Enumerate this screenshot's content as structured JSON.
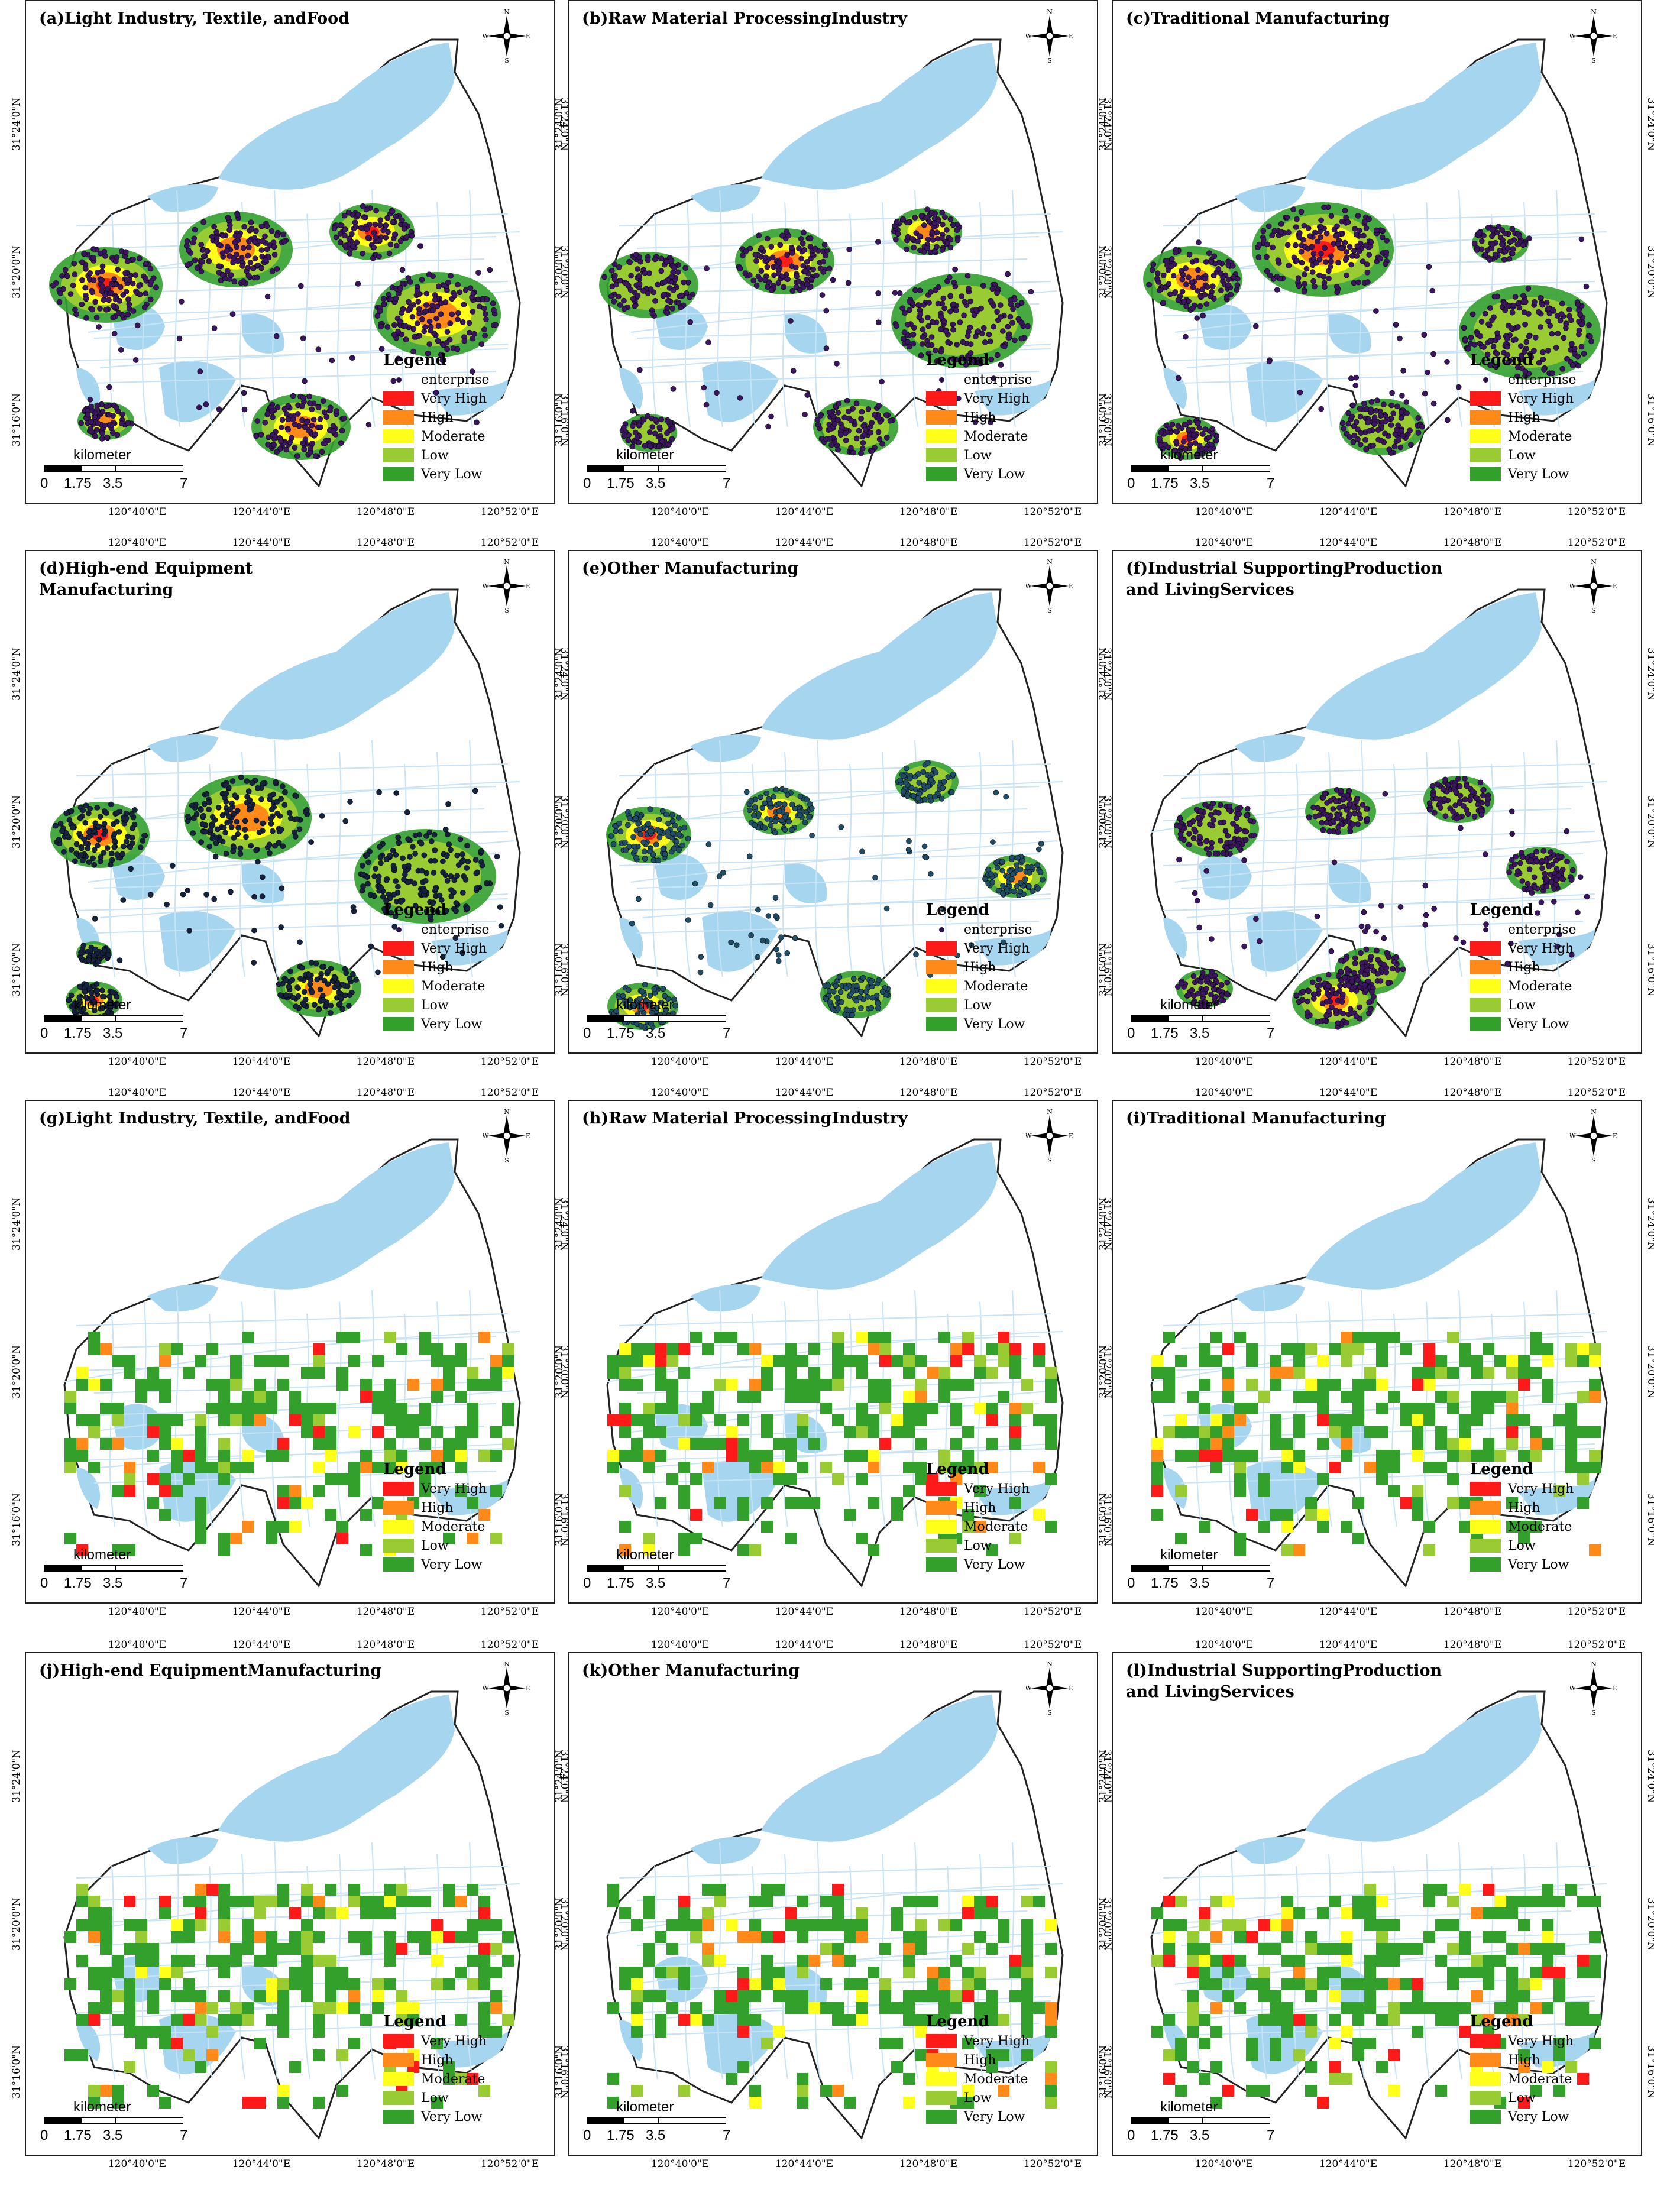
{
  "panels": [
    {
      "id": "a",
      "title": "(a)Light Industry, Textile, andFood",
      "type": "density",
      "dots": "#3b1560"
    },
    {
      "id": "b",
      "title": "(b)Raw Material ProcessingIndustry",
      "type": "density",
      "dots": "#3b1560"
    },
    {
      "id": "c",
      "title": "(c)Traditional Manufacturing",
      "type": "density",
      "dots": "#3b1560"
    },
    {
      "id": "d",
      "title": "(d)High-end Equipment\n Manufacturing",
      "type": "density",
      "dots": "#15233f"
    },
    {
      "id": "e",
      "title": "(e)Other Manufacturing",
      "type": "density",
      "dots": "#1f4e66"
    },
    {
      "id": "f",
      "title": "(f)Industrial SupportingProduction\n and LivingServices",
      "type": "density",
      "dots": "#3b1560"
    },
    {
      "id": "g",
      "title": "(g)Light Industry, Textile, andFood",
      "type": "grid"
    },
    {
      "id": "h",
      "title": "(h)Raw Material ProcessingIndustry",
      "type": "grid"
    },
    {
      "id": "i",
      "title": "(i)Traditional Manufacturing",
      "type": "grid"
    },
    {
      "id": "j",
      "title": "(j)High-end EquipmentManufacturing",
      "type": "grid"
    },
    {
      "id": "k",
      "title": "(k)Other Manufacturing",
      "type": "grid"
    },
    {
      "id": "l",
      "title": "(l)Industrial SupportingProduction\n and LivingServices",
      "type": "grid"
    }
  ],
  "legend": {
    "title": "Legend",
    "enterprise_label": "enterprise",
    "classes": [
      {
        "label": "Very High",
        "color": "#ff1a1a"
      },
      {
        "label": "High",
        "color": "#ff8a1a"
      },
      {
        "label": "Moderate",
        "color": "#ffff1a"
      },
      {
        "label": "Low",
        "color": "#99cc33"
      },
      {
        "label": "Very Low",
        "color": "#33a02c"
      }
    ]
  },
  "scale": {
    "unit": "kilometer",
    "ticks": [
      "0",
      "1.75",
      "3.5",
      "7"
    ]
  },
  "axes": {
    "lon": [
      "120°40'0\"E",
      "120°44'0\"E",
      "120°48'0\"E",
      "120°52'0\"E"
    ],
    "lat": [
      "31°24'0\"N",
      "31°20'0\"N",
      "31°16'0\"N"
    ]
  },
  "north": {
    "n": "N",
    "s": "S",
    "e": "E",
    "w": "W"
  },
  "colors": {
    "water": "#a6d5ef",
    "road": "#c7e3f5",
    "land": "#ffffff",
    "outline": "#222222"
  }
}
